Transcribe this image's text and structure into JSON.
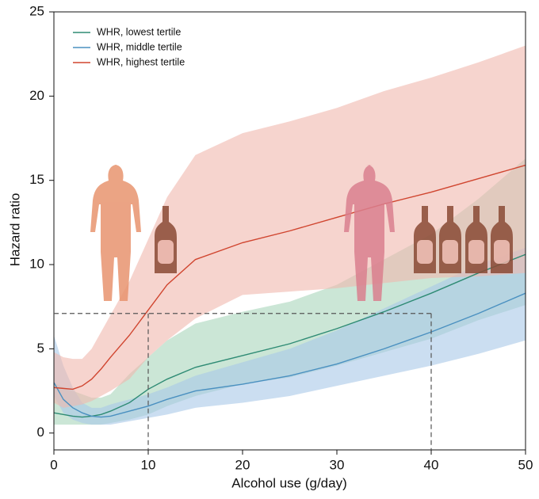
{
  "chart_data": {
    "type": "line-band",
    "x_label": "Alcohol use (g/day)",
    "y_label": "Hazard ratio",
    "x": [
      0,
      1,
      2,
      3,
      4,
      5,
      6,
      8,
      10,
      12,
      15,
      20,
      25,
      30,
      35,
      40,
      45,
      50
    ],
    "series": [
      {
        "name": "WHR, lowest tertile",
        "color": "#2e8b74",
        "band_color": "#a9d6ba",
        "values": [
          1.2,
          1.1,
          1.0,
          0.95,
          1.0,
          1.1,
          1.3,
          1.8,
          2.6,
          3.2,
          3.9,
          4.6,
          5.3,
          6.2,
          7.2,
          8.3,
          9.5,
          10.6
        ],
        "upper": [
          3.0,
          2.7,
          2.5,
          2.3,
          2.1,
          2.1,
          2.3,
          3.5,
          4.5,
          5.5,
          6.5,
          7.2,
          7.8,
          8.8,
          10.3,
          11.8,
          13.9,
          16.3
        ],
        "lower": [
          0.5,
          0.5,
          0.5,
          0.5,
          0.5,
          0.5,
          0.6,
          0.8,
          1.1,
          1.6,
          2.2,
          2.9,
          3.3,
          4.0,
          4.8,
          5.6,
          6.7,
          7.6
        ]
      },
      {
        "name": "WHR, middle tertile",
        "color": "#4a90c0",
        "band_color": "#a9c8e8",
        "values": [
          3.0,
          2.0,
          1.5,
          1.2,
          1.0,
          0.95,
          1.0,
          1.3,
          1.6,
          2.0,
          2.5,
          2.9,
          3.4,
          4.1,
          5.0,
          6.0,
          7.1,
          8.3
        ],
        "upper": [
          5.8,
          4.0,
          2.7,
          1.8,
          1.5,
          1.5,
          1.7,
          2.0,
          2.3,
          2.7,
          3.4,
          4.2,
          5.0,
          6.1,
          7.4,
          8.7,
          10.0,
          11.0
        ],
        "lower": [
          2.2,
          1.2,
          0.8,
          0.6,
          0.5,
          0.5,
          0.5,
          0.7,
          0.9,
          1.1,
          1.5,
          1.8,
          2.2,
          2.8,
          3.4,
          4.0,
          4.7,
          5.5
        ]
      },
      {
        "name": "WHR, highest tertile",
        "color": "#d0452f",
        "band_color": "#f0b8ad",
        "values": [
          2.7,
          2.65,
          2.6,
          2.8,
          3.2,
          3.8,
          4.5,
          5.8,
          7.3,
          8.8,
          10.3,
          11.3,
          12.0,
          12.8,
          13.6,
          14.3,
          15.1,
          15.9
        ],
        "upper": [
          4.8,
          4.5,
          4.4,
          4.4,
          5.0,
          6.0,
          7.0,
          9.0,
          11.5,
          14.0,
          16.5,
          17.8,
          18.5,
          19.3,
          20.3,
          21.1,
          22.0,
          23.0
        ],
        "lower": [
          1.8,
          1.5,
          1.6,
          1.7,
          1.9,
          2.2,
          2.5,
          3.2,
          4.5,
          5.5,
          6.8,
          8.2,
          8.4,
          8.6,
          8.9,
          9.2,
          9.3,
          9.5
        ]
      }
    ],
    "reference": {
      "x": [
        10,
        40
      ],
      "y": 7.1
    },
    "xlim": [
      0,
      50
    ],
    "xticks": [
      0,
      10,
      20,
      30,
      40,
      50
    ],
    "ylim": [
      -1,
      25
    ],
    "yticks": [
      0,
      5,
      10,
      15,
      20,
      25
    ],
    "legend": "upper-left"
  }
}
